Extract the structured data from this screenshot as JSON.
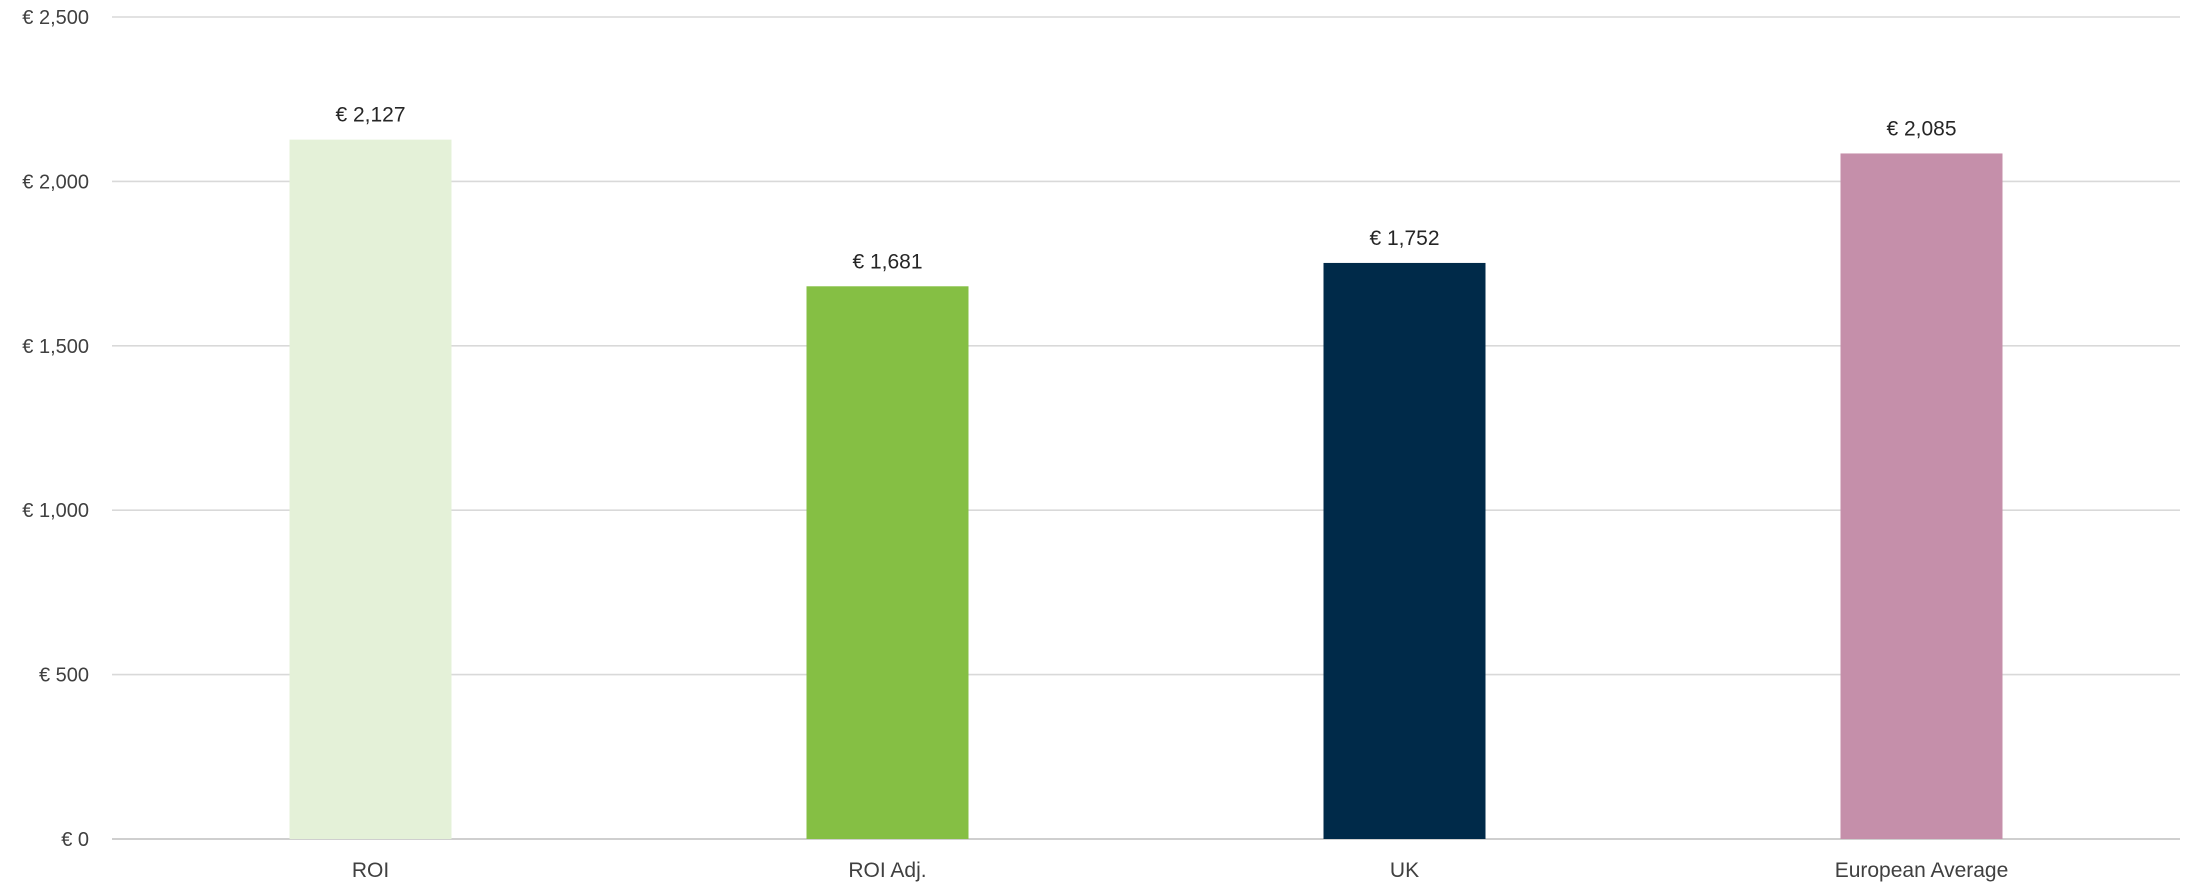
{
  "chart_data": {
    "type": "bar",
    "categories": [
      "ROI",
      "ROI Adj.",
      "UK",
      "European Average"
    ],
    "values": [
      2127,
      1681,
      1752,
      2085
    ],
    "value_labels": [
      "€ 2,127",
      "€ 1,681",
      "€ 1,752",
      "€ 2,085"
    ],
    "colors": [
      "#e4f1d8",
      "#85bf44",
      "#002a49",
      "#c58faa"
    ],
    "title": "",
    "xlabel": "",
    "ylabel": "",
    "ylim": [
      0,
      2500
    ],
    "yticks": [
      0,
      500,
      1000,
      1500,
      2000,
      2500
    ],
    "ytick_labels": [
      "€ 0",
      "€ 500",
      "€ 1,000",
      "€ 1,500",
      "€ 2,000",
      "€ 2,500"
    ],
    "grid": true,
    "legend": "none"
  }
}
